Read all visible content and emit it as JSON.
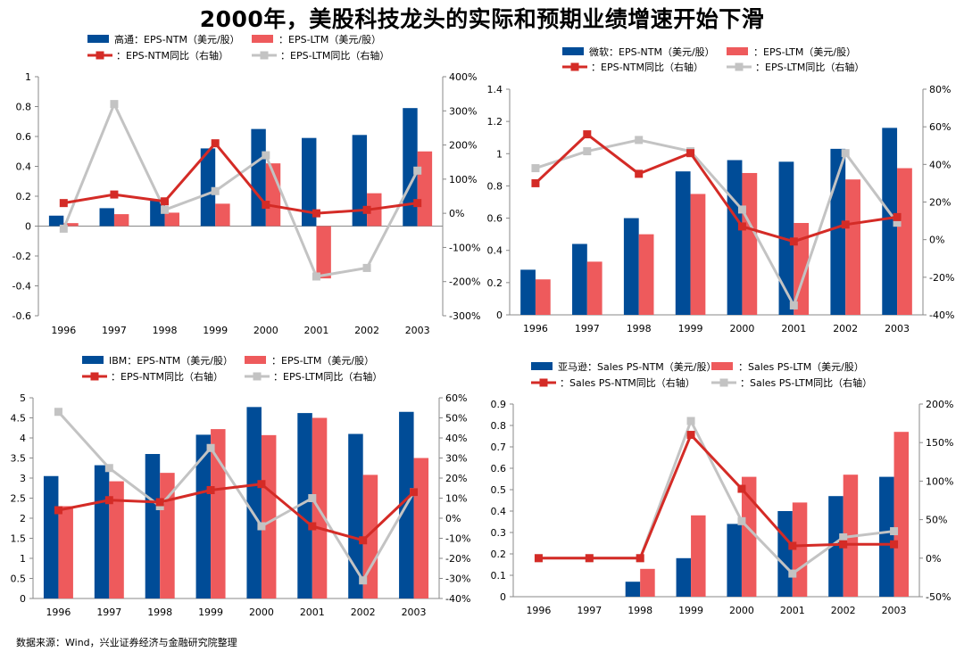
{
  "title": "2000年，美股科技龙头的实际和预期业绩增速开始下滑",
  "source": "数据来源：Wind，兴业证券经济与金融研究院整理",
  "colors": {
    "ntm": "#004C97",
    "ltm": "#EE5A5C",
    "ntm_line": "#D42B26",
    "ltm_line": "#C3C3C3"
  },
  "chart_data": [
    {
      "type": "bar",
      "company": "高通",
      "categories": [
        "1996",
        "1997",
        "1998",
        "1999",
        "2000",
        "2001",
        "2002",
        "2003"
      ],
      "series": [
        {
          "name": "高通：EPS-NTM（美元/股）",
          "kind": "bar",
          "axis": "left",
          "values": [
            0.07,
            0.12,
            0.17,
            0.52,
            0.65,
            0.59,
            0.61,
            0.79
          ]
        },
        {
          "name": "：EPS-LTM（美元/股）",
          "kind": "bar",
          "axis": "left",
          "values": [
            0.02,
            0.08,
            0.09,
            0.15,
            0.42,
            -0.35,
            0.22,
            0.5
          ]
        },
        {
          "name": "：EPS-NTM同比（右轴）",
          "kind": "line",
          "axis": "right",
          "values": [
            30,
            55,
            35,
            205,
            25,
            0,
            10,
            30
          ]
        },
        {
          "name": "：EPS-LTM同比（右轴）",
          "kind": "line",
          "axis": "right",
          "values": [
            -45,
            320,
            10,
            65,
            170,
            -185,
            -160,
            125
          ]
        }
      ],
      "ylim": [
        -0.6,
        1
      ],
      "yticks": [
        -0.6,
        -0.4,
        -0.2,
        0,
        0.2,
        0.4,
        0.6,
        0.8,
        1
      ],
      "ytick_labels": [
        "-0.6",
        "-0.4",
        "-0.2",
        "0",
        "0.2",
        "0.4",
        "0.6",
        "0.8",
        "1"
      ],
      "y2lim": [
        -300,
        400
      ],
      "y2ticks": [
        -300,
        -200,
        -100,
        0,
        100,
        200,
        300,
        400
      ],
      "y2tick_labels": [
        "-300%",
        "-200%",
        "-100%",
        "0%",
        "100%",
        "200%",
        "300%",
        "400%"
      ],
      "legend_rows": [
        [
          "高通：EPS-NTM（美元/股）",
          "：EPS-LTM（美元/股）"
        ],
        [
          "：EPS-NTM同比（右轴）",
          "：EPS-LTM同比（右轴）"
        ]
      ]
    },
    {
      "type": "bar",
      "company": "微软",
      "categories": [
        "1996",
        "1997",
        "1998",
        "1999",
        "2000",
        "2001",
        "2002",
        "2003"
      ],
      "series": [
        {
          "name": "微软：EPS-NTM（美元/股）",
          "kind": "bar",
          "axis": "left",
          "values": [
            0.28,
            0.44,
            0.6,
            0.89,
            0.96,
            0.95,
            1.03,
            1.16
          ]
        },
        {
          "name": "：EPS-LTM（美元/股）",
          "kind": "bar",
          "axis": "left",
          "values": [
            0.22,
            0.33,
            0.5,
            0.75,
            0.88,
            0.57,
            0.84,
            0.91
          ]
        },
        {
          "name": "：EPS-NTM同比（右轴）",
          "kind": "line",
          "axis": "right",
          "values": [
            30,
            56,
            35,
            46,
            7,
            -1,
            8,
            12
          ]
        },
        {
          "name": "：EPS-LTM同比（右轴）",
          "kind": "line",
          "axis": "right",
          "values": [
            38,
            47,
            53,
            47,
            16,
            -35,
            46,
            9
          ]
        }
      ],
      "ylim": [
        0,
        1.4
      ],
      "yticks": [
        0,
        0.2,
        0.4,
        0.6,
        0.8,
        1,
        1.2,
        1.4
      ],
      "ytick_labels": [
        "0",
        "0.2",
        "0.4",
        "0.6",
        "0.8",
        "1",
        "1.2",
        "1.4"
      ],
      "y2lim": [
        -40,
        80
      ],
      "y2ticks": [
        -40,
        -20,
        0,
        20,
        40,
        60,
        80
      ],
      "y2tick_labels": [
        "-40%",
        "-20%",
        "0%",
        "20%",
        "40%",
        "60%",
        "80%"
      ],
      "legend_rows": [
        [
          "微软：EPS-NTM（美元/股）",
          "：EPS-LTM（美元/股）"
        ],
        [
          "：EPS-NTM同比（右轴）",
          "：EPS-LTM同比（右轴）"
        ]
      ]
    },
    {
      "type": "bar",
      "company": "IBM",
      "categories": [
        "1996",
        "1997",
        "1998",
        "1999",
        "2000",
        "2001",
        "2002",
        "2003"
      ],
      "series": [
        {
          "name": "IBM：EPS-NTM（美元/股）",
          "kind": "bar",
          "axis": "left",
          "values": [
            3.05,
            3.32,
            3.6,
            4.08,
            4.77,
            4.62,
            4.1,
            4.65
          ]
        },
        {
          "name": "：EPS-LTM（美元/股）",
          "kind": "bar",
          "axis": "left",
          "values": [
            2.3,
            2.92,
            3.13,
            4.22,
            4.07,
            4.5,
            3.08,
            3.5
          ]
        },
        {
          "name": "：EPS-NTM同比（右轴）",
          "kind": "line",
          "axis": "right",
          "values": [
            4,
            9,
            8,
            14,
            17,
            -4,
            -11,
            13
          ]
        },
        {
          "name": "：EPS-LTM同比（右轴）",
          "kind": "line",
          "axis": "right",
          "values": [
            53,
            25,
            6,
            35,
            -4,
            10,
            -31,
            13
          ]
        }
      ],
      "ylim": [
        0,
        5
      ],
      "yticks": [
        0,
        0.5,
        1,
        1.5,
        2,
        2.5,
        3,
        3.5,
        4,
        4.5,
        5
      ],
      "ytick_labels": [
        "0",
        "0.5",
        "1",
        "1.5",
        "2",
        "2.5",
        "3",
        "3.5",
        "4",
        "4.5",
        "5"
      ],
      "y2lim": [
        -40,
        60
      ],
      "y2ticks": [
        -40,
        -30,
        -20,
        -10,
        0,
        10,
        20,
        30,
        40,
        50,
        60
      ],
      "y2tick_labels": [
        "-40%",
        "-30%",
        "-20%",
        "-10%",
        "0%",
        "10%",
        "20%",
        "30%",
        "40%",
        "50%",
        "60%"
      ],
      "legend_rows": [
        [
          "IBM：EPS-NTM（美元/股）",
          "：EPS-LTM（美元/股）"
        ],
        [
          "：EPS-NTM同比（右轴）",
          "：EPS-LTM同比（右轴）"
        ]
      ]
    },
    {
      "type": "bar",
      "company": "亚马逊",
      "categories": [
        "1996",
        "1997",
        "1998",
        "1999",
        "2000",
        "2001",
        "2002",
        "2003"
      ],
      "series": [
        {
          "name": "亚马逊：Sales PS-NTM（美元/股）",
          "kind": "bar",
          "axis": "left",
          "values": [
            0,
            0,
            0.07,
            0.18,
            0.34,
            0.4,
            0.47,
            0.56
          ]
        },
        {
          "name": "：Sales PS-LTM（美元/股）",
          "kind": "bar",
          "axis": "left",
          "values": [
            0,
            0,
            0.13,
            0.38,
            0.56,
            0.44,
            0.57,
            0.77
          ]
        },
        {
          "name": "：Sales PS-NTM同比（右轴）",
          "kind": "line",
          "axis": "right",
          "values": [
            0,
            0,
            0,
            160,
            90,
            16,
            18,
            18
          ]
        },
        {
          "name": "：Sales PS-LTM同比（右轴）",
          "kind": "line",
          "axis": "right",
          "values": [
            0,
            0,
            0,
            178,
            48,
            -20,
            27,
            35
          ]
        }
      ],
      "ylim": [
        0,
        0.9
      ],
      "yticks": [
        0,
        0.1,
        0.2,
        0.3,
        0.4,
        0.5,
        0.6,
        0.7,
        0.8,
        0.9
      ],
      "ytick_labels": [
        "0",
        "0.1",
        "0.2",
        "0.3",
        "0.4",
        "0.5",
        "0.6",
        "0.7",
        "0.8",
        "0.9"
      ],
      "y2lim": [
        -50,
        200
      ],
      "y2ticks": [
        -50,
        0,
        50,
        100,
        150,
        200
      ],
      "y2tick_labels": [
        "-50%",
        "0%",
        "50%",
        "100%",
        "150%",
        "200%"
      ],
      "legend_rows": [
        [
          "亚马逊：Sales PS-NTM（美元/股）",
          "：Sales PS-LTM（美元/股）"
        ],
        [
          "：Sales PS-NTM同比（右轴）",
          "：Sales PS-LTM同比（右轴）"
        ]
      ]
    }
  ]
}
